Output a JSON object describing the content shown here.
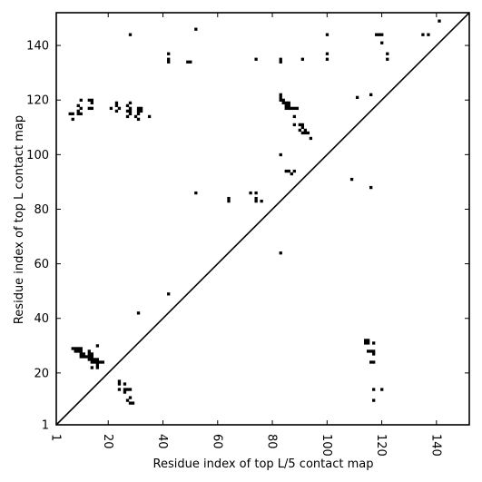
{
  "chart_data": {
    "type": "scatter",
    "xlabel": "Residue index of top L/5 contact map",
    "ylabel": "Residue index of top L contact map",
    "xlim": [
      1,
      152
    ],
    "ylim": [
      1,
      152
    ],
    "xticks": [
      1,
      20,
      40,
      60,
      80,
      100,
      120,
      140
    ],
    "yticks": [
      1,
      20,
      40,
      60,
      80,
      100,
      120,
      140
    ],
    "grid": false,
    "marker": "square",
    "marker_color": "#000000",
    "diagonal_line": true,
    "series": [
      {
        "points": [
          [
            6,
            115
          ],
          [
            7,
            113
          ],
          [
            7,
            115
          ],
          [
            9,
            115
          ],
          [
            9,
            116
          ],
          [
            9,
            118
          ],
          [
            10,
            115
          ],
          [
            10,
            117
          ],
          [
            10,
            120
          ],
          [
            13,
            117
          ],
          [
            13,
            120
          ],
          [
            14,
            117
          ],
          [
            14,
            119
          ],
          [
            14,
            120
          ],
          [
            21,
            117
          ],
          [
            23,
            116
          ],
          [
            23,
            118
          ],
          [
            23,
            119
          ],
          [
            24,
            117
          ],
          [
            27,
            114
          ],
          [
            27,
            116
          ],
          [
            27,
            118
          ],
          [
            28,
            115
          ],
          [
            28,
            116
          ],
          [
            28,
            117
          ],
          [
            28,
            119
          ],
          [
            28,
            144
          ],
          [
            30,
            114
          ],
          [
            31,
            113
          ],
          [
            31,
            115
          ],
          [
            31,
            116
          ],
          [
            31,
            117
          ],
          [
            32,
            116
          ],
          [
            32,
            117
          ],
          [
            35,
            114
          ],
          [
            42,
            134
          ],
          [
            42,
            135
          ],
          [
            42,
            137
          ],
          [
            49,
            134
          ],
          [
            50,
            134
          ],
          [
            52,
            146
          ],
          [
            74,
            135
          ],
          [
            83,
            134
          ],
          [
            83,
            135
          ],
          [
            91,
            135
          ],
          [
            100,
            135
          ],
          [
            100,
            137
          ],
          [
            100,
            144
          ],
          [
            111,
            121
          ],
          [
            116,
            122
          ],
          [
            118,
            144
          ],
          [
            119,
            144
          ],
          [
            120,
            141
          ],
          [
            120,
            144
          ],
          [
            122,
            135
          ],
          [
            122,
            137
          ],
          [
            135,
            144
          ],
          [
            137,
            144
          ],
          [
            141,
            149
          ],
          [
            83,
            120
          ],
          [
            83,
            121
          ],
          [
            83,
            122
          ],
          [
            84,
            119
          ],
          [
            84,
            120
          ],
          [
            85,
            117
          ],
          [
            85,
            118
          ],
          [
            85,
            119
          ],
          [
            86,
            117
          ],
          [
            86,
            118
          ],
          [
            86,
            119
          ],
          [
            87,
            117
          ],
          [
            88,
            117
          ],
          [
            88,
            114
          ],
          [
            88,
            111
          ],
          [
            89,
            117
          ],
          [
            90,
            111
          ],
          [
            90,
            109
          ],
          [
            91,
            108
          ],
          [
            91,
            110
          ],
          [
            91,
            111
          ],
          [
            92,
            108
          ],
          [
            92,
            109
          ],
          [
            93,
            108
          ],
          [
            94,
            106
          ],
          [
            83,
            100
          ],
          [
            85,
            94
          ],
          [
            86,
            94
          ],
          [
            87,
            93
          ],
          [
            88,
            94
          ],
          [
            109,
            91
          ],
          [
            116,
            88
          ],
          [
            52,
            86
          ],
          [
            64,
            83
          ],
          [
            64,
            84
          ],
          [
            72,
            86
          ],
          [
            74,
            83
          ],
          [
            74,
            84
          ],
          [
            74,
            86
          ],
          [
            76,
            83
          ],
          [
            83,
            64
          ],
          [
            42,
            49
          ],
          [
            31,
            42
          ],
          [
            7,
            29
          ],
          [
            8,
            28
          ],
          [
            8,
            29
          ],
          [
            9,
            28
          ],
          [
            9,
            29
          ],
          [
            10,
            27
          ],
          [
            10,
            26
          ],
          [
            10,
            28
          ],
          [
            10,
            29
          ],
          [
            11,
            26
          ],
          [
            11,
            27
          ],
          [
            12,
            26
          ],
          [
            13,
            25
          ],
          [
            13,
            26
          ],
          [
            13,
            27
          ],
          [
            13,
            28
          ],
          [
            14,
            24
          ],
          [
            14,
            25
          ],
          [
            14,
            26
          ],
          [
            14,
            27
          ],
          [
            14,
            22
          ],
          [
            15,
            24
          ],
          [
            15,
            25
          ],
          [
            16,
            23
          ],
          [
            16,
            24
          ],
          [
            16,
            22
          ],
          [
            16,
            25
          ],
          [
            16,
            30
          ],
          [
            17,
            24
          ],
          [
            18,
            24
          ],
          [
            24,
            14
          ],
          [
            24,
            16
          ],
          [
            24,
            17
          ],
          [
            26,
            13
          ],
          [
            26,
            14
          ],
          [
            26,
            16
          ],
          [
            27,
            10
          ],
          [
            27,
            14
          ],
          [
            28,
            9
          ],
          [
            28,
            11
          ],
          [
            28,
            14
          ],
          [
            29,
            9
          ],
          [
            114,
            31
          ],
          [
            114,
            32
          ],
          [
            115,
            31
          ],
          [
            115,
            32
          ],
          [
            115,
            28
          ],
          [
            116,
            24
          ],
          [
            116,
            28
          ],
          [
            117,
            24
          ],
          [
            117,
            27
          ],
          [
            117,
            28
          ],
          [
            117,
            31
          ],
          [
            117,
            14
          ],
          [
            117,
            10
          ],
          [
            120,
            14
          ]
        ]
      }
    ]
  }
}
